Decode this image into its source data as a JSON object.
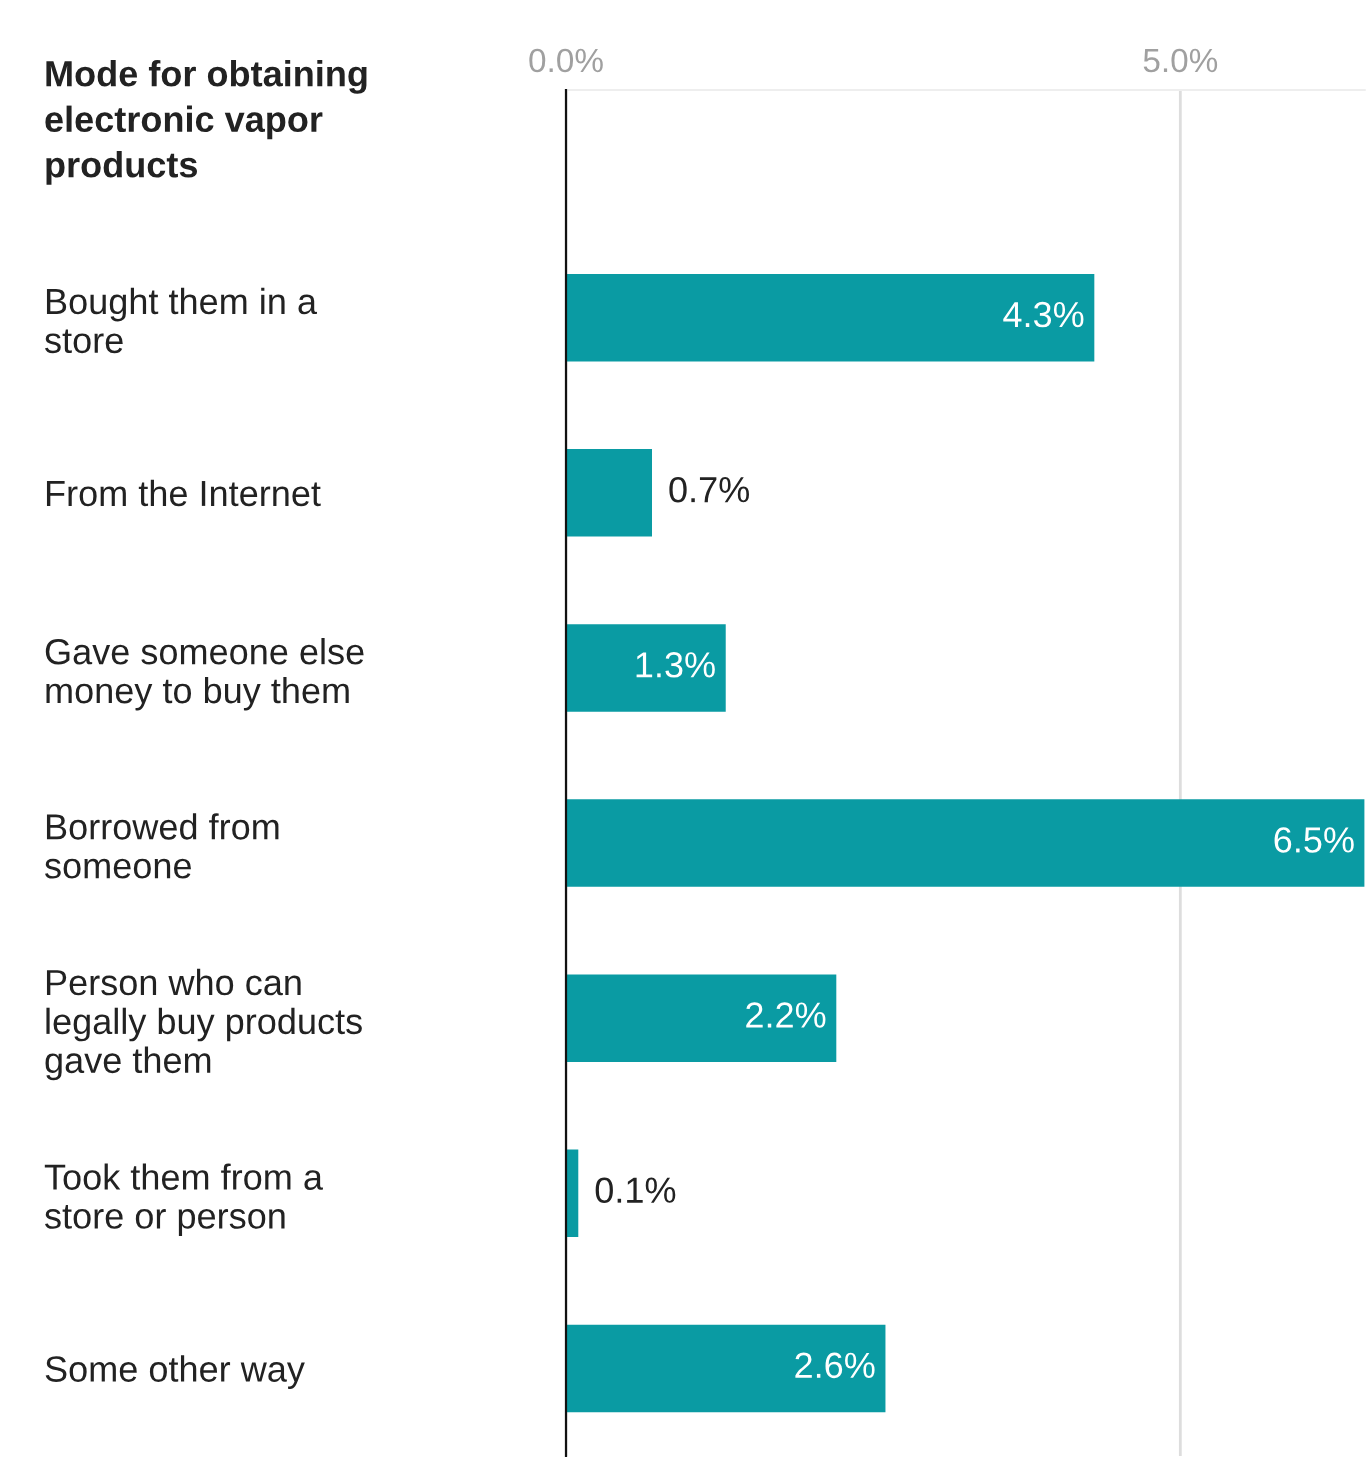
{
  "chart_data": {
    "type": "bar",
    "orientation": "horizontal",
    "title": "Mode for obtaining\nelectronic vapor\nproducts",
    "categories": [
      "Bought them in a\nstore",
      "From the Internet",
      "Gave someone else\nmoney to buy them",
      "Borrowed from\nsomeone",
      "Person who can\nlegally buy products\ngave them",
      "Took them from a\nstore or person",
      "Some other way"
    ],
    "values": [
      4.3,
      0.7,
      1.3,
      6.5,
      2.2,
      0.1,
      2.6
    ],
    "value_labels": [
      "4.3%",
      "0.7%",
      "1.3%",
      "6.5%",
      "2.2%",
      "0.1%",
      "2.6%"
    ],
    "color": "#0a9ba3",
    "xlim": [
      0,
      6.5
    ],
    "xticks": [
      {
        "value": 0,
        "label": "0.0%"
      },
      {
        "value": 5,
        "label": "5.0%"
      }
    ],
    "grid": "x"
  }
}
